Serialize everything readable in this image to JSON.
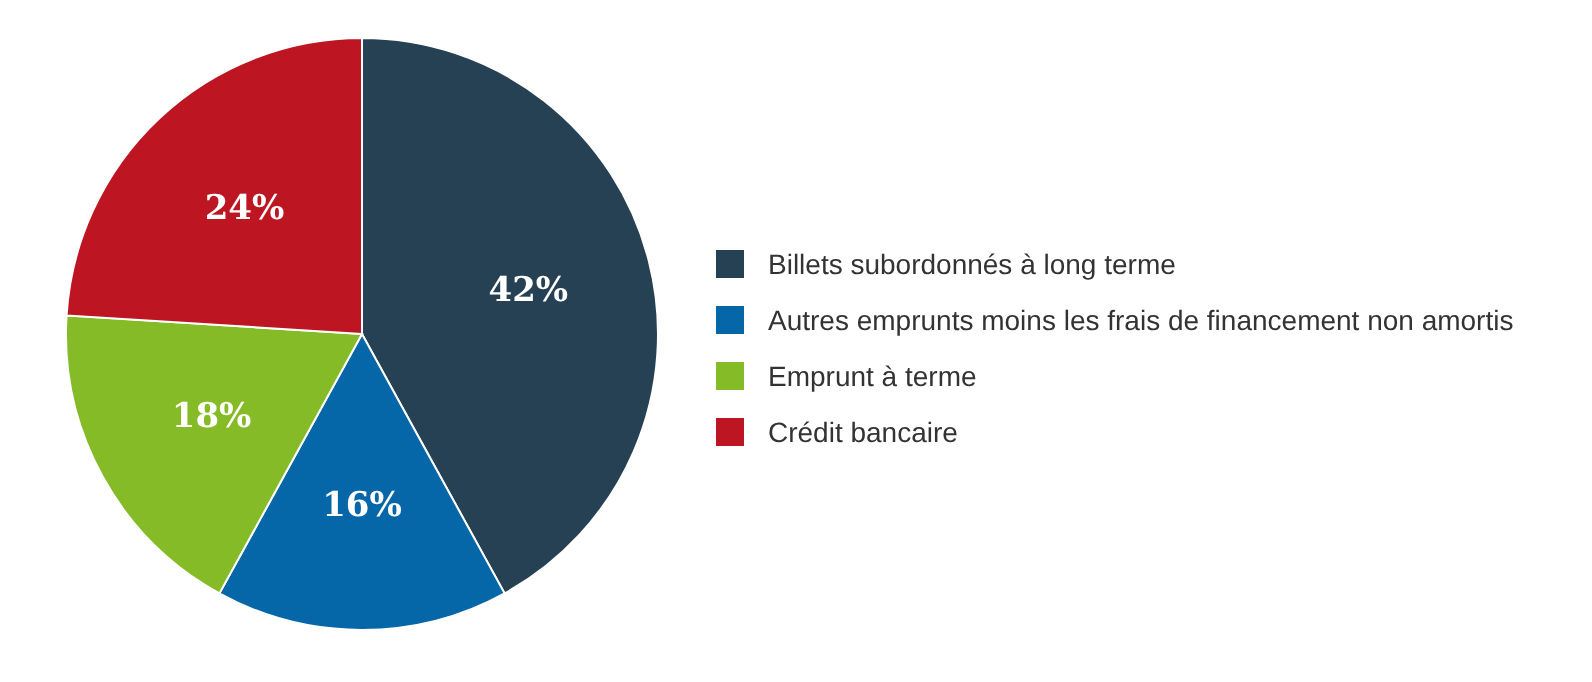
{
  "chart_data": {
    "type": "pie",
    "categories": [
      "Billets subordonnés à long terme",
      "Autres emprunts moins les frais de financement non amortis",
      "Emprunt à terme",
      "Crédit bancaire"
    ],
    "values": [
      42,
      16,
      18,
      24
    ],
    "colors": [
      "#264153",
      "#0566a8",
      "#84bb26",
      "#bd1622"
    ],
    "value_labels": [
      "42%",
      "16%",
      "18%",
      "24%"
    ],
    "legend": "right"
  }
}
